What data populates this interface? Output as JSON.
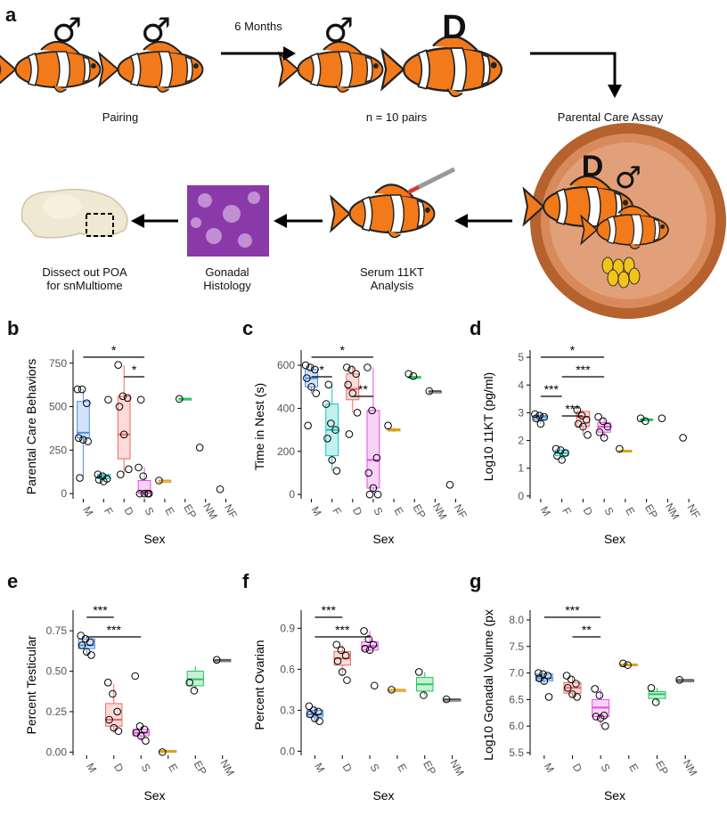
{
  "panel_a": {
    "letter": "a",
    "labels": {
      "pairing": "Pairing",
      "months": "6 Months",
      "pairs": "n = 10 pairs",
      "assay": "Parental Care Assay",
      "serum": "Serum 11KT\nAnalysis",
      "histology": "Gonadal\nHistology",
      "dissect": "Dissect out POA\nfor snMultiome",
      "male_symbol": "♂",
      "dominant_letter": "D"
    }
  },
  "colors": {
    "M": "#4a90e2",
    "F": "#17c3c3",
    "D": "#ee6a5e",
    "S": "#e24fe0",
    "E": "#d9a21b",
    "EP": "#22c55e",
    "NM": "#555555",
    "NF": "#555555"
  },
  "chart_data": [
    {
      "panel": "b",
      "type": "boxplot",
      "xlabel": "Sex",
      "ylabel": "Parental Care Behaviors",
      "ylim": [
        -30,
        800
      ],
      "yticks": [
        0,
        250,
        500,
        750
      ],
      "categories": [
        "M",
        "F",
        "D",
        "S",
        "E",
        "EP",
        "NM",
        "NF"
      ],
      "boxes": {
        "M": [
          100,
          320,
          350,
          530,
          600
        ],
        "F": [
          70,
          85,
          100,
          110,
          120
        ],
        "D": [
          110,
          200,
          340,
          560,
          740
        ],
        "S": [
          0,
          0,
          10,
          75,
          150
        ],
        "E": [
          75,
          75,
          75,
          75,
          75
        ],
        "EP": [
          540,
          542,
          545,
          548,
          550
        ]
      },
      "points": {
        "M": [
          600,
          600,
          520,
          320,
          310,
          300,
          90
        ],
        "F": [
          110,
          100,
          85,
          80,
          70,
          540
        ],
        "D": [
          740,
          560,
          550,
          500,
          340,
          140,
          110
        ],
        "S": [
          150,
          100,
          0,
          0,
          0,
          0,
          540
        ],
        "E": [
          75
        ],
        "EP": [
          545
        ],
        "NM": [
          265
        ],
        "NF": [
          25
        ]
      },
      "sig": [
        {
          "from": "M",
          "to": "S",
          "label": "*"
        },
        {
          "from": "D",
          "to": "S",
          "label": "*"
        }
      ]
    },
    {
      "panel": "c",
      "type": "boxplot",
      "xlabel": "Sex",
      "ylabel": "Time in Nest (s)",
      "ylim": [
        -20,
        650
      ],
      "yticks": [
        0,
        200,
        400,
        600
      ],
      "categories": [
        "M",
        "F",
        "D",
        "S",
        "E",
        "EP",
        "NM",
        "NF"
      ],
      "boxes": {
        "M": [
          470,
          500,
          540,
          580,
          600
        ],
        "F": [
          110,
          180,
          300,
          420,
          510
        ],
        "D": [
          380,
          440,
          490,
          560,
          600
        ],
        "S": [
          0,
          30,
          160,
          390,
          590
        ],
        "E": [
          290,
          295,
          300,
          305,
          310
        ],
        "EP": [
          540,
          543,
          545,
          548,
          550
        ],
        "NM": [
          480,
          480,
          480,
          480,
          480
        ]
      },
      "points": {
        "M": [
          600,
          590,
          580,
          540,
          500,
          470,
          320
        ],
        "F": [
          420,
          330,
          300,
          260,
          160,
          110,
          510
        ],
        "D": [
          590,
          580,
          560,
          510,
          470,
          380,
          280
        ],
        "S": [
          590,
          390,
          170,
          100,
          30,
          0,
          0
        ],
        "E": [
          320
        ],
        "EP": [
          560,
          550
        ],
        "NM": [
          480
        ],
        "NF": [
          45
        ]
      },
      "sig": [
        {
          "from": "M",
          "to": "S",
          "label": "*"
        },
        {
          "from": "M",
          "to": "F",
          "label": "*"
        },
        {
          "from": "D",
          "to": "S",
          "label": "**"
        }
      ]
    },
    {
      "panel": "d",
      "type": "boxplot",
      "xlabel": "Sex",
      "ylabel": "Log10 11KT (pg/ml)",
      "ylim": [
        -0.1,
        5.1
      ],
      "yticks": [
        0,
        1,
        2,
        3,
        4,
        5
      ],
      "categories": [
        "M",
        "F",
        "D",
        "S",
        "E",
        "EP",
        "NM",
        "NF"
      ],
      "boxes": {
        "M": [
          2.6,
          2.75,
          2.85,
          2.9,
          3.0
        ],
        "F": [
          1.3,
          1.45,
          1.55,
          1.65,
          1.7
        ],
        "D": [
          2.2,
          2.5,
          2.85,
          3.05,
          3.1
        ],
        "S": [
          2.1,
          2.3,
          2.5,
          2.65,
          2.85
        ],
        "E": [
          1.6,
          1.62,
          1.63,
          1.65,
          1.66
        ],
        "EP": [
          2.7,
          2.72,
          2.75,
          2.78,
          2.8
        ]
      },
      "points": {
        "M": [
          2.95,
          2.9,
          2.85,
          2.8,
          2.6
        ],
        "F": [
          1.7,
          1.65,
          1.55,
          1.45,
          1.3
        ],
        "D": [
          3.1,
          2.9,
          2.75,
          2.6,
          2.5,
          2.2
        ],
        "S": [
          2.85,
          2.7,
          2.5,
          2.3,
          2.1
        ],
        "E": [
          1.7
        ],
        "EP": [
          2.8,
          2.7
        ],
        "NM": [
          2.8
        ],
        "NF": [
          2.1
        ]
      },
      "sig": [
        {
          "from": "M",
          "to": "S",
          "label": "*"
        },
        {
          "from": "F",
          "to": "S",
          "label": "***"
        },
        {
          "from": "M",
          "to": "F",
          "label": "***"
        },
        {
          "from": "F",
          "to": "D",
          "label": "***"
        }
      ]
    },
    {
      "panel": "e",
      "type": "boxplot",
      "xlabel": "Sex",
      "ylabel": "Percent Testicular",
      "ylim": [
        -0.02,
        0.85
      ],
      "yticks": [
        0.0,
        0.25,
        0.5,
        0.75
      ],
      "ytick_labels": [
        "0.00",
        "0.25",
        "0.50",
        "0.75"
      ],
      "categories": [
        "M",
        "D",
        "S",
        "E",
        "EP",
        "NM"
      ],
      "boxes": {
        "M": [
          0.6,
          0.64,
          0.66,
          0.7,
          0.72
        ],
        "D": [
          0.12,
          0.16,
          0.2,
          0.3,
          0.42
        ],
        "S": [
          0.07,
          0.1,
          0.12,
          0.14,
          0.16
        ],
        "E": [
          0,
          0,
          0.005,
          0.01,
          0.01
        ],
        "EP": [
          0.38,
          0.41,
          0.45,
          0.5,
          0.53
        ],
        "NM": [
          0.57,
          0.57,
          0.57,
          0.57,
          0.57
        ]
      },
      "points": {
        "M": [
          0.72,
          0.7,
          0.68,
          0.66,
          0.62,
          0.6
        ],
        "D": [
          0.43,
          0.36,
          0.25,
          0.2,
          0.15,
          0.13
        ],
        "S": [
          0.47,
          0.16,
          0.14,
          0.12,
          0.1,
          0.07
        ],
        "E": [
          0.0
        ],
        "EP": [
          0.43,
          0.38
        ],
        "NM": [
          0.57
        ]
      },
      "sig": [
        {
          "from": "M",
          "to": "D",
          "label": "***"
        },
        {
          "from": "M",
          "to": "S",
          "label": "***"
        }
      ]
    },
    {
      "panel": "f",
      "type": "boxplot",
      "xlabel": "Sex",
      "ylabel": "Percent Ovarian",
      "ylim": [
        -0.03,
        1.0
      ],
      "yticks": [
        0.0,
        0.3,
        0.6,
        0.9
      ],
      "ytick_labels": [
        "0.0",
        "0.3",
        "0.6",
        "0.9"
      ],
      "categories": [
        "M",
        "D",
        "S",
        "E",
        "EP",
        "NM"
      ],
      "boxes": {
        "M": [
          0.22,
          0.25,
          0.27,
          0.3,
          0.33
        ],
        "D": [
          0.55,
          0.63,
          0.68,
          0.73,
          0.78
        ],
        "S": [
          0.72,
          0.74,
          0.77,
          0.8,
          0.88
        ],
        "E": [
          0.44,
          0.44,
          0.45,
          0.45,
          0.46
        ],
        "EP": [
          0.41,
          0.44,
          0.49,
          0.54,
          0.58
        ],
        "NM": [
          0.38,
          0.38,
          0.38,
          0.38,
          0.38
        ]
      },
      "points": {
        "M": [
          0.33,
          0.3,
          0.29,
          0.27,
          0.24,
          0.22
        ],
        "D": [
          0.78,
          0.74,
          0.7,
          0.66,
          0.58,
          0.52
        ],
        "S": [
          0.88,
          0.82,
          0.78,
          0.75,
          0.74,
          0.48
        ],
        "E": [
          0.45
        ],
        "EP": [
          0.58,
          0.41
        ],
        "NM": [
          0.38
        ]
      },
      "sig": [
        {
          "from": "M",
          "to": "D",
          "label": "***"
        },
        {
          "from": "M",
          "to": "S",
          "label": "***"
        }
      ]
    },
    {
      "panel": "g",
      "type": "boxplot",
      "xlabel": "Sex",
      "ylabel": "Log10 Gonadal Volume (px",
      "ylim": [
        5.45,
        8.1
      ],
      "yticks": [
        5.5,
        6.0,
        6.5,
        7.0,
        7.5,
        8.0
      ],
      "ytick_labels": [
        "5.5",
        "6.0",
        "6.5",
        "7.0",
        "7.5",
        "8.0"
      ],
      "categories": [
        "M",
        "D",
        "S",
        "E",
        "EP",
        "NM"
      ],
      "boxes": {
        "M": [
          6.8,
          6.85,
          6.9,
          6.98,
          7.0
        ],
        "D": [
          6.55,
          6.62,
          6.72,
          6.82,
          6.95
        ],
        "S": [
          6.0,
          6.18,
          6.35,
          6.5,
          6.7
        ],
        "E": [
          7.15,
          7.15,
          7.16,
          7.17,
          7.18
        ],
        "EP": [
          6.45,
          6.52,
          6.6,
          6.65,
          6.72
        ],
        "NM": [
          6.87,
          6.87,
          6.87,
          6.87,
          6.87
        ]
      },
      "points": {
        "M": [
          7.0,
          6.98,
          6.95,
          6.9,
          6.85,
          6.55
        ],
        "D": [
          6.95,
          6.88,
          6.8,
          6.72,
          6.6,
          6.55
        ],
        "S": [
          6.7,
          6.58,
          6.2,
          6.18,
          6.15,
          6.0
        ],
        "E": [
          7.18,
          7.15
        ],
        "EP": [
          6.72,
          6.45
        ],
        "NM": [
          6.87
        ]
      },
      "sig": [
        {
          "from": "M",
          "to": "S",
          "label": "***"
        },
        {
          "from": "D",
          "to": "S",
          "label": "**"
        }
      ]
    }
  ]
}
